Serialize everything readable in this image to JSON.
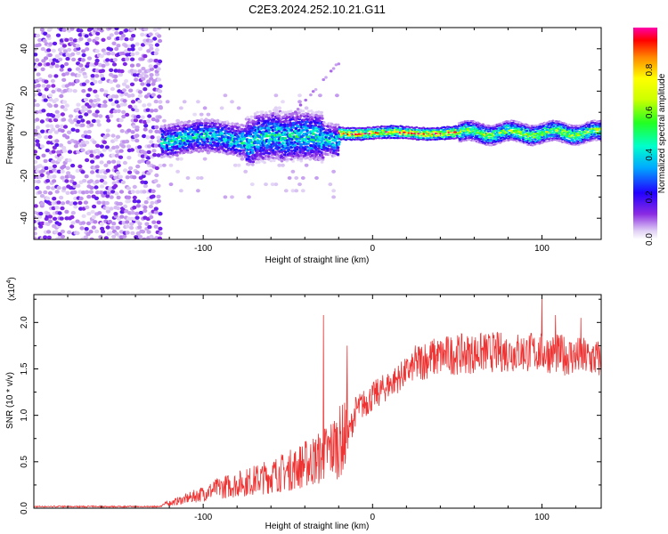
{
  "title": "C2E3.2024.252.10.21.G11",
  "chart_data": [
    {
      "type": "heatmap",
      "xlabel": "Height of straight line (km)",
      "ylabel": "Frequency (Hz)",
      "xlim": [
        -200,
        135
      ],
      "ylim": [
        -50,
        50
      ],
      "x_ticks": [
        -100,
        0,
        100
      ],
      "y_ticks": [
        -40,
        -20,
        0,
        20,
        40
      ],
      "colorbar": {
        "label": "Normalized spectral amplitude",
        "range": [
          0,
          1
        ],
        "ticks": [
          0.0,
          0.2,
          0.4,
          0.6,
          0.8
        ]
      },
      "features": [
        {
          "x_range": [
            -200,
            -125
          ],
          "freq_range": [
            -50,
            50
          ],
          "amplitude": 0.1
        },
        {
          "x_range": [
            -125,
            -20
          ],
          "freq_center": -3,
          "freq_halfwidth": 6,
          "amplitude": 0.3
        },
        {
          "x_range": [
            -20,
            135
          ],
          "freq_center": 0,
          "freq_halfwidth": 3,
          "amplitude": 0.8
        }
      ]
    },
    {
      "type": "line",
      "xlabel": "Height of straight line (km)",
      "ylabel": "SNR (10 * v/v)",
      "y_multiplier_label": "(x10",
      "y_multiplier_exp": "4",
      "xlim": [
        -200,
        135
      ],
      "ylim": [
        0,
        2.3
      ],
      "x_ticks": [
        -100,
        0,
        100
      ],
      "y_ticks": [
        "0.0",
        "0.5",
        "1.0",
        "1.5",
        "2.0"
      ],
      "color": "#ee3333",
      "profile": [
        {
          "x": -200,
          "y": 0.01
        },
        {
          "x": -130,
          "y": 0.01
        },
        {
          "x": -110,
          "y": 0.1
        },
        {
          "x": -90,
          "y": 0.22
        },
        {
          "x": -70,
          "y": 0.3
        },
        {
          "x": -50,
          "y": 0.4
        },
        {
          "x": -30,
          "y": 0.55
        },
        {
          "x": -14,
          "y": 0.8
        },
        {
          "x": -10,
          "y": 1.05
        },
        {
          "x": 0,
          "y": 1.2
        },
        {
          "x": 15,
          "y": 1.4
        },
        {
          "x": 30,
          "y": 1.6
        },
        {
          "x": 45,
          "y": 1.65
        },
        {
          "x": 70,
          "y": 1.68
        },
        {
          "x": 100,
          "y": 1.68
        },
        {
          "x": 135,
          "y": 1.6
        }
      ],
      "spikes": [
        {
          "x": -29,
          "y": 2.08
        },
        {
          "x": -15,
          "y": 1.75
        },
        {
          "x": 100,
          "y": 2.28
        },
        {
          "x": 108,
          "y": 2.08
        },
        {
          "x": 123,
          "y": 2.05
        }
      ]
    }
  ]
}
